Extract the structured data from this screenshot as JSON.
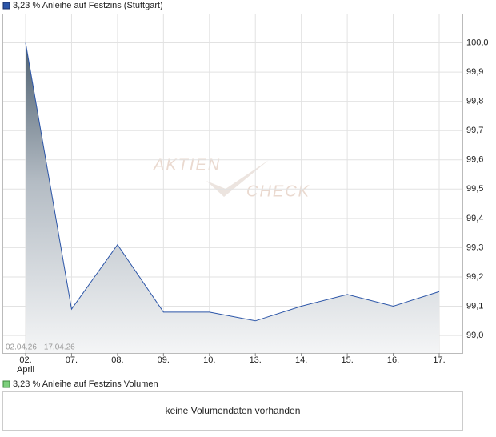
{
  "chart_data": {
    "type": "area",
    "categories": [
      "02.",
      "07.",
      "08.",
      "09.",
      "10.",
      "13.",
      "14.",
      "15.",
      "16.",
      "17."
    ],
    "x_annotation": "April",
    "date_range": "02.04.26 - 17.04.26",
    "watermark": [
      "AKTIEN",
      "CHECK"
    ],
    "series": [
      {
        "name": "3,23 % Anleihe auf Festzins (Stuttgart)",
        "color": "#2b55a8",
        "values": [
          100.0,
          99.09,
          99.31,
          99.08,
          99.08,
          99.05,
          99.1,
          99.14,
          99.1,
          99.15
        ]
      }
    ],
    "ylim": [
      98.94,
      100.1
    ],
    "yticks": [
      {
        "value": 99.0,
        "label": "99,0"
      },
      {
        "value": 99.1,
        "label": "99,1"
      },
      {
        "value": 99.2,
        "label": "99,2"
      },
      {
        "value": 99.3,
        "label": "99,3"
      },
      {
        "value": 99.4,
        "label": "99,4"
      },
      {
        "value": 99.5,
        "label": "99,5"
      },
      {
        "value": 99.6,
        "label": "99,6"
      },
      {
        "value": 99.7,
        "label": "99,7"
      },
      {
        "value": 99.8,
        "label": "99,8"
      },
      {
        "value": 99.9,
        "label": "99,9"
      },
      {
        "value": 100.0,
        "label": "100,0"
      }
    ],
    "grid": true
  },
  "volume_panel": {
    "title": "3,23 % Anleihe auf Festzins Volumen",
    "message": "keine Volumendaten vorhanden"
  }
}
